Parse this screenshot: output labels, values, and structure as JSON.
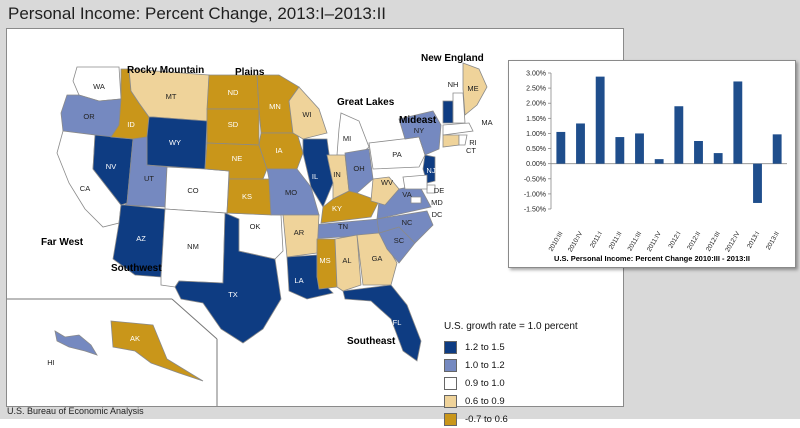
{
  "title": "Personal Income: Percent Change, 2013:I–2013:II",
  "source": "U.S. Bureau of Economic Analysis",
  "colors": {
    "c1": "#0e3c82",
    "c2": "#7589c0",
    "c3": "#ffffff",
    "c4": "#efd39a",
    "c5": "#c9961a"
  },
  "regions": {
    "rocky": "Rocky Mountain",
    "plains": "Plains",
    "newengland": "New England",
    "greatlakes": "Great Lakes",
    "mideast": "Mideast",
    "farwest": "Far West",
    "southwest": "Southwest",
    "southeast": "Southeast"
  },
  "legend": {
    "title": "U.S. growth rate = 1.0 percent",
    "items": [
      {
        "label": "1.2 to 1.5",
        "color": "#0e3c82"
      },
      {
        "label": "1.0 to 1.2",
        "color": "#7589c0"
      },
      {
        "label": "0.9 to 1.0",
        "color": "#ffffff"
      },
      {
        "label": "0.6 to 0.9",
        "color": "#efd39a"
      },
      {
        "label": "-0.7 to 0.6",
        "color": "#c9961a"
      }
    ]
  },
  "states": [
    {
      "id": "WA",
      "cls": "c3"
    },
    {
      "id": "OR",
      "cls": "c2"
    },
    {
      "id": "CA",
      "cls": "c3"
    },
    {
      "id": "NV",
      "cls": "c1"
    },
    {
      "id": "ID",
      "cls": "c5"
    },
    {
      "id": "MT",
      "cls": "c4"
    },
    {
      "id": "WY",
      "cls": "c1"
    },
    {
      "id": "UT",
      "cls": "c2"
    },
    {
      "id": "CO",
      "cls": "c3"
    },
    {
      "id": "AZ",
      "cls": "c1"
    },
    {
      "id": "NM",
      "cls": "c3"
    },
    {
      "id": "TX",
      "cls": "c1"
    },
    {
      "id": "OK",
      "cls": "c3"
    },
    {
      "id": "ND",
      "cls": "c5"
    },
    {
      "id": "SD",
      "cls": "c5"
    },
    {
      "id": "NE",
      "cls": "c5"
    },
    {
      "id": "KS",
      "cls": "c5"
    },
    {
      "id": "MN",
      "cls": "c5"
    },
    {
      "id": "IA",
      "cls": "c5"
    },
    {
      "id": "MO",
      "cls": "c2"
    },
    {
      "id": "WI",
      "cls": "c4"
    },
    {
      "id": "MI",
      "cls": "c3"
    },
    {
      "id": "IL",
      "cls": "c1"
    },
    {
      "id": "IN",
      "cls": "c4"
    },
    {
      "id": "OH",
      "cls": "c2"
    },
    {
      "id": "KY",
      "cls": "c5"
    },
    {
      "id": "TN",
      "cls": "c2"
    },
    {
      "id": "AR",
      "cls": "c4"
    },
    {
      "id": "LA",
      "cls": "c1"
    },
    {
      "id": "MS",
      "cls": "c5"
    },
    {
      "id": "AL",
      "cls": "c4"
    },
    {
      "id": "GA",
      "cls": "c4"
    },
    {
      "id": "FL",
      "cls": "c1"
    },
    {
      "id": "SC",
      "cls": "c2"
    },
    {
      "id": "NC",
      "cls": "c2"
    },
    {
      "id": "VA",
      "cls": "c2"
    },
    {
      "id": "WV",
      "cls": "c4"
    },
    {
      "id": "PA",
      "cls": "c3"
    },
    {
      "id": "NY",
      "cls": "c2"
    },
    {
      "id": "NJ",
      "cls": "c1"
    },
    {
      "id": "DE",
      "cls": "c3"
    },
    {
      "id": "MD",
      "cls": "c3"
    },
    {
      "id": "DC",
      "cls": "c3"
    },
    {
      "id": "VT",
      "cls": "c1"
    },
    {
      "id": "NH",
      "cls": "c3"
    },
    {
      "id": "ME",
      "cls": "c4"
    },
    {
      "id": "MA",
      "cls": "c3"
    },
    {
      "id": "CT",
      "cls": "c4"
    },
    {
      "id": "RI",
      "cls": "c3"
    },
    {
      "id": "AK",
      "cls": "c5"
    },
    {
      "id": "HI",
      "cls": "c2"
    }
  ],
  "chart_data": {
    "type": "bar",
    "title": "U.S. Personal Income: Percent Change 2010:III - 2013:II",
    "categories": [
      "2010:III",
      "2010:IV",
      "2011:I",
      "2011:II",
      "2011:III",
      "2011:IV",
      "2012:I",
      "2012:II",
      "2012:III",
      "2012:IV",
      "2013:I",
      "2013:II"
    ],
    "values": [
      1.05,
      1.33,
      2.88,
      0.88,
      1.0,
      0.15,
      1.9,
      0.75,
      0.35,
      2.72,
      -1.3,
      0.97
    ],
    "ylim": [
      -1.5,
      3.0
    ],
    "yticks": [
      "3.00%",
      "2.50%",
      "2.00%",
      "1.50%",
      "1.00%",
      "0.50%",
      "0.00%",
      "-0.50%",
      "-1.00%",
      "-1.50%"
    ],
    "bar_color": "#1f4e8c",
    "grid": false
  }
}
